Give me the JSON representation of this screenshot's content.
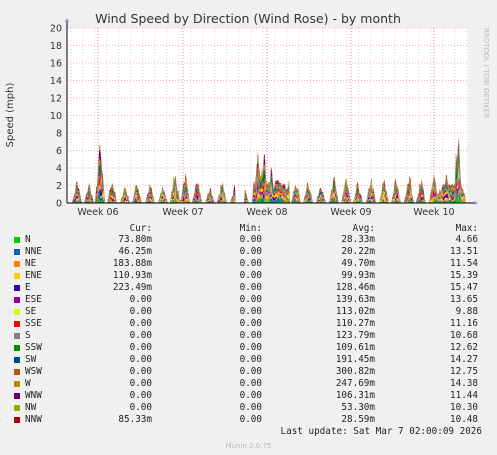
{
  "chart_data": {
    "type": "area",
    "title": "Wind Speed by Direction (Wind Rose) - by month",
    "ylabel": "Speed (mph)",
    "ylim": [
      0,
      20
    ],
    "yticks": [
      0,
      2,
      4,
      6,
      8,
      10,
      12,
      14,
      16,
      18,
      20
    ],
    "xticks": [
      "Week 06",
      "Week 07",
      "Week 08",
      "Week 09",
      "Week 10"
    ],
    "watermark": "RRDTOOL / TOBI OETIKER",
    "grid": true,
    "series": [
      {
        "name": "N",
        "color": "#00cc00"
      },
      {
        "name": "NNE",
        "color": "#0066b3"
      },
      {
        "name": "NE",
        "color": "#ff8000"
      },
      {
        "name": "ENE",
        "color": "#ffcc00"
      },
      {
        "name": "E",
        "color": "#330099"
      },
      {
        "name": "ESE",
        "color": "#990099"
      },
      {
        "name": "SE",
        "color": "#ccff00"
      },
      {
        "name": "SSE",
        "color": "#ff0000"
      },
      {
        "name": "S",
        "color": "#808080"
      },
      {
        "name": "SSW",
        "color": "#008f00"
      },
      {
        "name": "SW",
        "color": "#00487d"
      },
      {
        "name": "WSW",
        "color": "#b35a00"
      },
      {
        "name": "W",
        "color": "#b38f00"
      },
      {
        "name": "WNW",
        "color": "#6b006b"
      },
      {
        "name": "NW",
        "color": "#8fb300"
      },
      {
        "name": "NNW",
        "color": "#b30000"
      }
    ]
  },
  "legend": {
    "headers": {
      "cur": "Cur:",
      "min": "Min:",
      "avg": "Avg:",
      "max": "Max:"
    },
    "rows": [
      {
        "name": "N",
        "cur": "73.80m",
        "min": "0.00",
        "avg": "28.33m",
        "max": "4.66"
      },
      {
        "name": "NNE",
        "cur": "46.25m",
        "min": "0.00",
        "avg": "20.22m",
        "max": "13.51"
      },
      {
        "name": "NE",
        "cur": "183.88m",
        "min": "0.00",
        "avg": "49.70m",
        "max": "11.54"
      },
      {
        "name": "ENE",
        "cur": "110.93m",
        "min": "0.00",
        "avg": "99.93m",
        "max": "15.39"
      },
      {
        "name": "E",
        "cur": "223.49m",
        "min": "0.00",
        "avg": "128.46m",
        "max": "15.47"
      },
      {
        "name": "ESE",
        "cur": "0.00",
        "min": "0.00",
        "avg": "139.63m",
        "max": "13.65"
      },
      {
        "name": "SE",
        "cur": "0.00",
        "min": "0.00",
        "avg": "113.02m",
        "max": "9.88"
      },
      {
        "name": "SSE",
        "cur": "0.00",
        "min": "0.00",
        "avg": "110.27m",
        "max": "11.16"
      },
      {
        "name": "S",
        "cur": "0.00",
        "min": "0.00",
        "avg": "123.79m",
        "max": "10.68"
      },
      {
        "name": "SSW",
        "cur": "0.00",
        "min": "0.00",
        "avg": "109.61m",
        "max": "12.62"
      },
      {
        "name": "SW",
        "cur": "0.00",
        "min": "0.00",
        "avg": "191.45m",
        "max": "14.27"
      },
      {
        "name": "WSW",
        "cur": "0.00",
        "min": "0.00",
        "avg": "300.82m",
        "max": "12.75"
      },
      {
        "name": "W",
        "cur": "0.00",
        "min": "0.00",
        "avg": "247.69m",
        "max": "14.38"
      },
      {
        "name": "WNW",
        "cur": "0.00",
        "min": "0.00",
        "avg": "106.31m",
        "max": "11.44"
      },
      {
        "name": "NW",
        "cur": "0.00",
        "min": "0.00",
        "avg": "53.30m",
        "max": "10.30"
      },
      {
        "name": "NNW",
        "cur": "85.33m",
        "min": "0.00",
        "avg": "28.59m",
        "max": "10.48"
      }
    ]
  },
  "footer": {
    "last_update": "Last update: Sat Mar  7 02:00:09 2026",
    "generator": "Munin 2.0.75"
  }
}
